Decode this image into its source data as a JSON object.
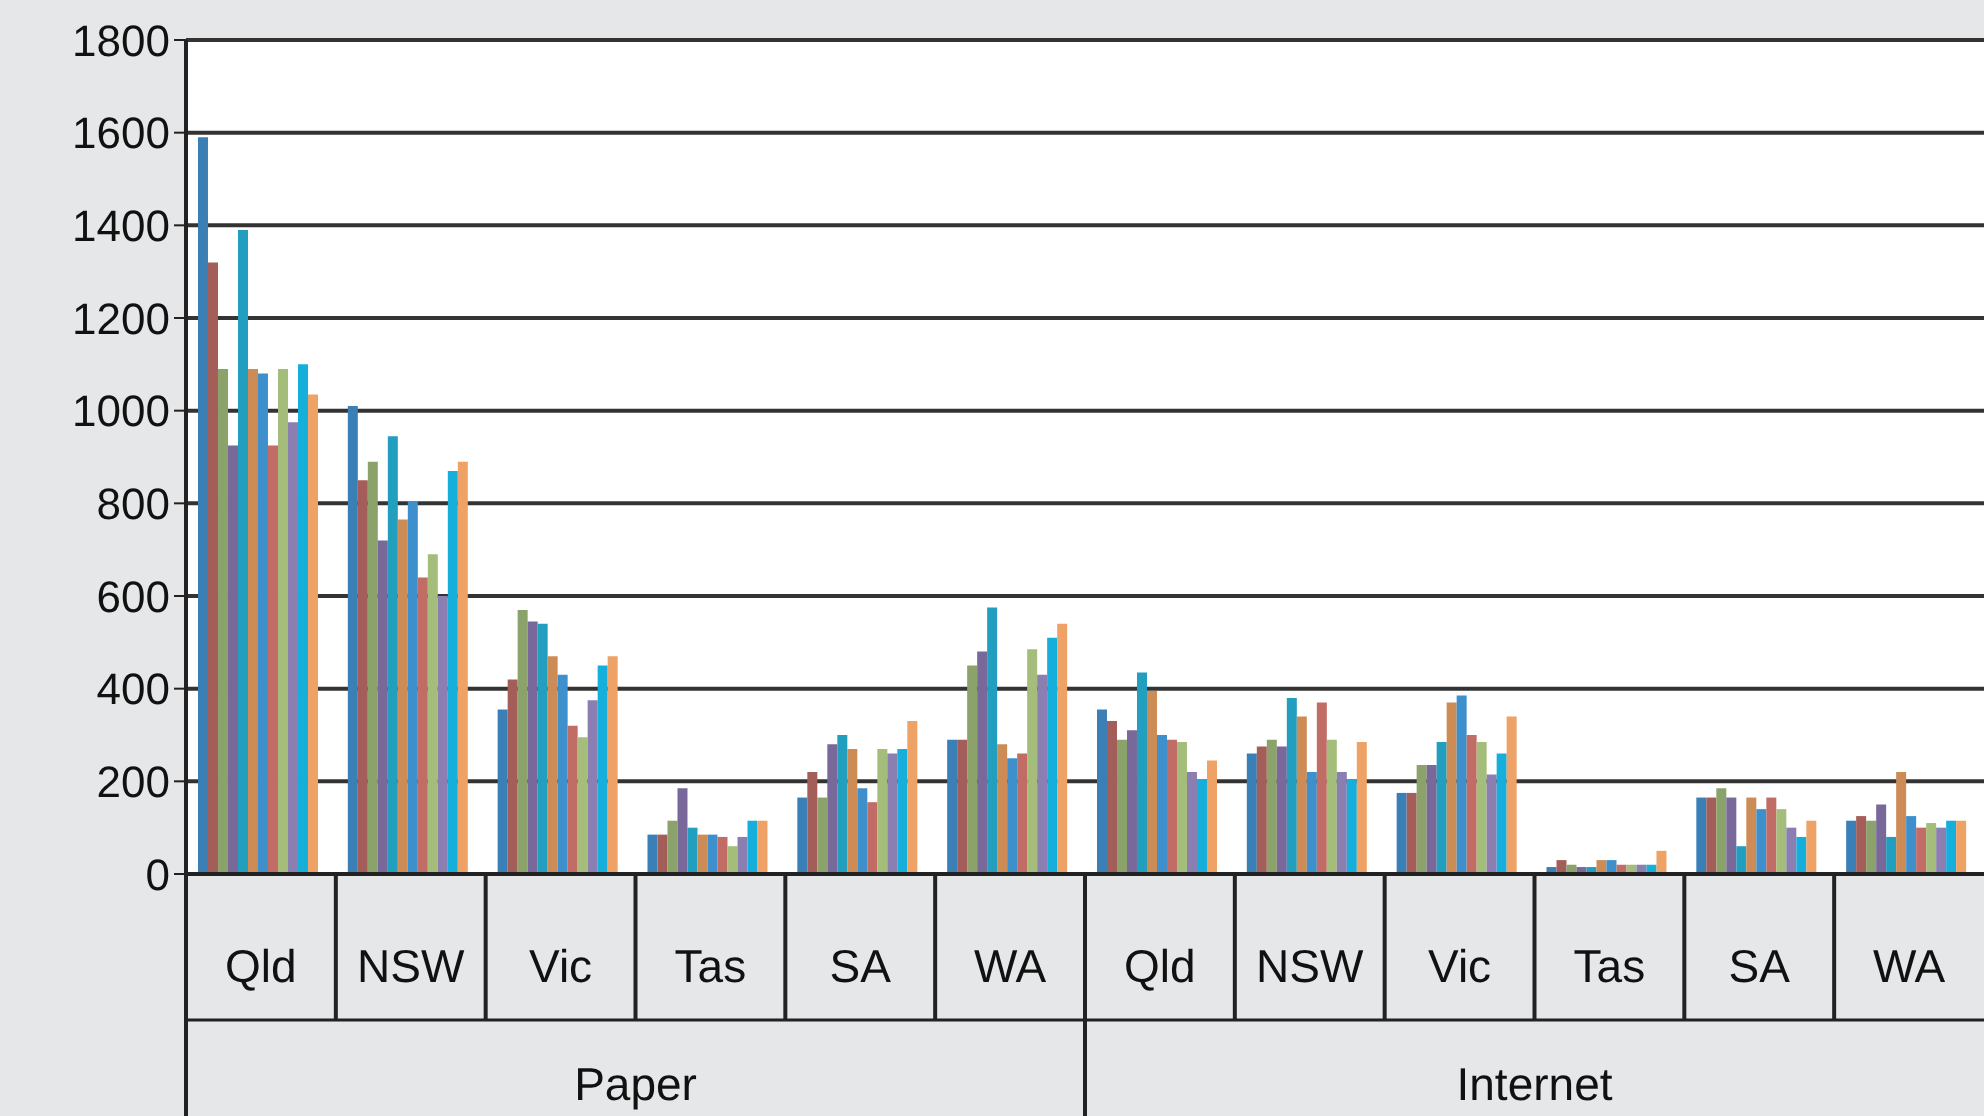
{
  "chart_data": {
    "type": "bar",
    "categories": [
      "Qld",
      "NSW",
      "Vic",
      "Tas",
      "SA",
      "WA",
      "Qld",
      "NSW",
      "Vic",
      "Tas",
      "SA",
      "WA"
    ],
    "series": [
      {
        "color": "#3a7fb5",
        "values": [
          1590,
          1010,
          355,
          85,
          165,
          290,
          355,
          260,
          175,
          15,
          165,
          115
        ]
      },
      {
        "color": "#a35e5a",
        "values": [
          1320,
          850,
          420,
          85,
          220,
          290,
          330,
          275,
          175,
          30,
          165,
          125
        ]
      },
      {
        "color": "#8ba26a",
        "values": [
          1090,
          890,
          570,
          115,
          165,
          450,
          290,
          290,
          235,
          20,
          185,
          115
        ]
      },
      {
        "color": "#78699a",
        "values": [
          925,
          720,
          545,
          185,
          280,
          480,
          310,
          275,
          235,
          15,
          165,
          150
        ]
      },
      {
        "color": "#229ebf",
        "values": [
          1390,
          945,
          540,
          100,
          300,
          575,
          435,
          380,
          285,
          15,
          60,
          80
        ]
      },
      {
        "color": "#cd8c55",
        "values": [
          1090,
          765,
          470,
          85,
          270,
          280,
          395,
          340,
          370,
          30,
          165,
          220
        ]
      },
      {
        "color": "#3e90cc",
        "values": [
          1080,
          805,
          430,
          85,
          185,
          250,
          300,
          220,
          385,
          30,
          140,
          125
        ]
      },
      {
        "color": "#c26c66",
        "values": [
          925,
          640,
          320,
          80,
          155,
          260,
          290,
          370,
          300,
          20,
          165,
          100
        ]
      },
      {
        "color": "#a5bd7b",
        "values": [
          1090,
          690,
          295,
          60,
          270,
          485,
          285,
          290,
          285,
          20,
          140,
          110
        ]
      },
      {
        "color": "#8a7fb0",
        "values": [
          975,
          600,
          375,
          80,
          260,
          430,
          220,
          220,
          215,
          20,
          100,
          100
        ]
      },
      {
        "color": "#16aedb",
        "values": [
          1100,
          870,
          450,
          115,
          270,
          510,
          205,
          205,
          260,
          20,
          80,
          115
        ]
      },
      {
        "color": "#efa265",
        "values": [
          1035,
          890,
          470,
          115,
          330,
          540,
          245,
          285,
          340,
          50,
          115,
          115
        ]
      }
    ],
    "ylim": [
      0,
      1800
    ],
    "yticks": [
      0,
      200,
      400,
      600,
      800,
      1000,
      1200,
      1400,
      1600,
      1800
    ],
    "grid": "y",
    "legend": false,
    "annotations": [
      "Paper",
      "Internet"
    ]
  }
}
